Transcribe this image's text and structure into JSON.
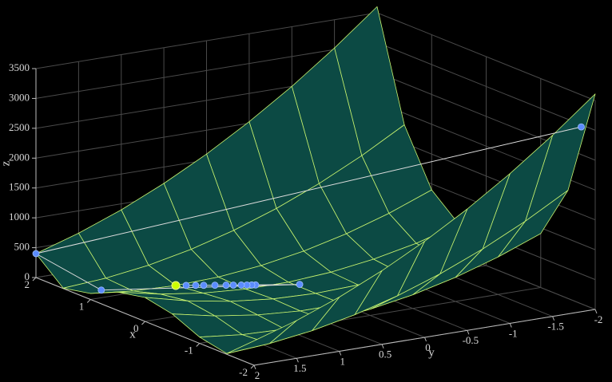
{
  "chart_data": {
    "type": "surface3d",
    "xlabel": "x",
    "ylabel": "y",
    "zlabel": "z",
    "xlim": [
      -2,
      2
    ],
    "ylim": [
      -2,
      2
    ],
    "zlim": [
      0,
      3500
    ],
    "xticks": [
      -2,
      -1,
      0,
      1,
      2
    ],
    "yticks": [
      -2,
      -1.5,
      -1,
      -0.5,
      0,
      0.5,
      1,
      1.5,
      2
    ],
    "zticks": [
      0,
      500,
      1000,
      1500,
      2000,
      2500,
      3000,
      3500
    ],
    "grid": true,
    "surface": {
      "color": "#0c4a44",
      "edgecolor": "#c6f26e",
      "x": [
        -2,
        -1.5,
        -1,
        -0.5,
        0,
        0.5,
        1,
        1.5,
        2
      ],
      "y": [
        -2,
        -1.5,
        -1,
        -0.5,
        0,
        0.5,
        1,
        1.5,
        2
      ],
      "z": [
        [
          3609,
          3034,
          2509,
          2034,
          1609,
          1234,
          909,
          634,
          409
        ],
        [
          1812.5,
          1412.5,
          1062.5,
          762.5,
          512.5,
          312.5,
          162.5,
          62.5,
          12.5
        ],
        [
          904,
          629,
          404,
          229,
          104,
          29,
          4,
          29,
          104
        ],
        [
          508.5,
          308.5,
          158.5,
          58.5,
          8.5,
          8.5,
          58.5,
          158.5,
          308.5
        ],
        [
          401,
          226,
          101,
          26,
          1,
          26,
          101,
          226,
          401
        ],
        [
          506.5,
          306.5,
          156.5,
          56.5,
          6.5,
          6.5,
          56.5,
          156.5,
          306.5
        ],
        [
          900,
          625,
          400,
          225,
          100,
          25,
          0,
          25,
          100
        ],
        [
          1806.25,
          1406.25,
          1056.25,
          756.25,
          506.25,
          306.25,
          156.25,
          56.25,
          6.25
        ],
        [
          3601,
          3026,
          2501,
          2026,
          1601,
          1226,
          901,
          626,
          401
        ]
      ]
    },
    "path": {
      "color": "#5b8cff",
      "linecolor": "#dddddd",
      "x": [
        -1.9,
        2,
        1.24,
        0.37,
        0.594,
        0.614,
        0.638,
        0.667,
        0.707,
        0.744,
        0.801,
        0.858,
        0.899,
        0.947
      ],
      "y": [
        -1.9,
        2,
        1.72,
        -0.05,
        0.323,
        0.356,
        0.397,
        0.445,
        0.512,
        0.574,
        0.668,
        0.763,
        0.831,
        0.912
      ],
      "z": [
        3044.4,
        401,
        3.3,
        3.9,
        0.25,
        0.19,
        0.14,
        0.11,
        0.1,
        0.11,
        0.11,
        0.093,
        0.063,
        0.025
      ]
    },
    "minimum": {
      "x": 1,
      "y": 1,
      "z": 0,
      "color": "#ccff00"
    }
  }
}
